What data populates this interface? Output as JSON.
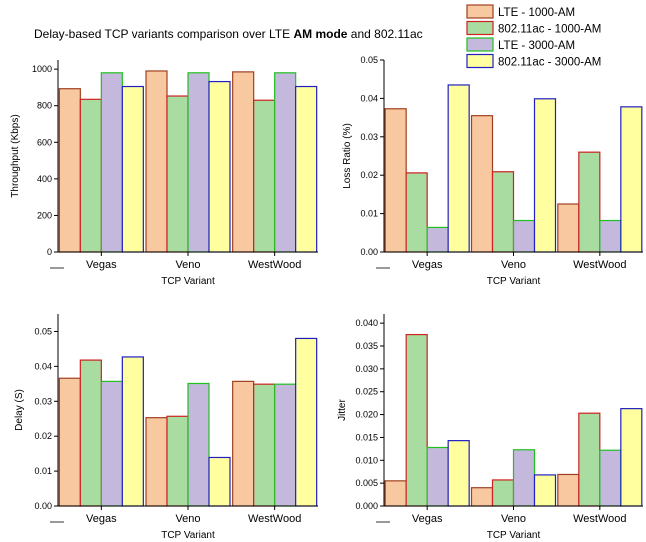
{
  "figure": {
    "title_prefix": "Delay-based TCP variants comparison over LTE ",
    "title_bold": "AM mode",
    "title_suffix": " and 802.11ac"
  },
  "legend": {
    "placement": "top-right",
    "entries": [
      {
        "label": "LTE - 1000-AM",
        "fill": "#f8c8a0",
        "stroke": "#a04020"
      },
      {
        "label": "802.11ac - 1000-AM",
        "fill": "#a8dca0",
        "stroke": "#d02020"
      },
      {
        "label": "LTE - 3000-AM",
        "fill": "#c4b8dc",
        "stroke": "#20c020"
      },
      {
        "label": "802.11ac - 3000-AM",
        "fill": "#ffffa0",
        "stroke": "#2020c0"
      }
    ]
  },
  "chart_data": [
    {
      "type": "bar",
      "categories": [
        "Vegas",
        "Veno",
        "WestWood"
      ],
      "xlabel": "TCP Variant",
      "ylabel": "Throughput (Kbps)",
      "ylim": [
        0,
        1050
      ],
      "yticks": [
        0,
        200,
        400,
        600,
        800,
        1000
      ],
      "ytick_labels": [
        "0",
        "200",
        "400",
        "600",
        "800",
        "1000"
      ],
      "series": [
        {
          "values": [
            893,
            990,
            985
          ]
        },
        {
          "values": [
            835,
            853,
            830
          ]
        },
        {
          "values": [
            980,
            980,
            980
          ]
        },
        {
          "values": [
            905,
            932,
            905
          ]
        }
      ]
    },
    {
      "type": "bar",
      "categories": [
        "Vegas",
        "Veno",
        "WestWood"
      ],
      "xlabel": "TCP Variant",
      "ylabel": "Loss Ratio (%)",
      "ylim": [
        0,
        0.05
      ],
      "yticks": [
        0,
        0.01,
        0.02,
        0.03,
        0.04,
        0.05
      ],
      "ytick_labels": [
        "0.00",
        "0.01",
        "0.02",
        "0.03",
        "0.04",
        "0.05"
      ],
      "series": [
        {
          "values": [
            0.0373,
            0.0355,
            0.0125
          ]
        },
        {
          "values": [
            0.0206,
            0.0209,
            0.026
          ]
        },
        {
          "values": [
            0.0064,
            0.0082,
            0.0082
          ]
        },
        {
          "values": [
            0.0435,
            0.0399,
            0.0378
          ]
        }
      ]
    },
    {
      "type": "bar",
      "categories": [
        "Vegas",
        "Veno",
        "WestWood"
      ],
      "xlabel": "TCP Variant",
      "ylabel": "Delay (S)",
      "ylim": [
        0,
        0.055
      ],
      "yticks": [
        0,
        0.01,
        0.02,
        0.03,
        0.04,
        0.05
      ],
      "ytick_labels": [
        "0.00",
        "0.01",
        "0.02",
        "0.03",
        "0.04",
        "0.05"
      ],
      "series": [
        {
          "values": [
            0.0366,
            0.0253,
            0.0357
          ]
        },
        {
          "values": [
            0.0418,
            0.0257,
            0.0349
          ]
        },
        {
          "values": [
            0.0357,
            0.0351,
            0.0349
          ]
        },
        {
          "values": [
            0.0427,
            0.0139,
            0.048
          ]
        }
      ]
    },
    {
      "type": "bar",
      "categories": [
        "Vegas",
        "Veno",
        "WestWood"
      ],
      "xlabel": "TCP Variant",
      "ylabel": "Jitter",
      "ylim": [
        0,
        0.042
      ],
      "yticks": [
        0,
        0.005,
        0.01,
        0.015,
        0.02,
        0.025,
        0.03,
        0.035,
        0.04
      ],
      "ytick_labels": [
        "0.000",
        "0.005",
        "0.010",
        "0.015",
        "0.020",
        "0.025",
        "0.030",
        "0.035",
        "0.040"
      ],
      "series": [
        {
          "values": [
            0.0055,
            0.004,
            0.0069
          ]
        },
        {
          "values": [
            0.0375,
            0.0057,
            0.0203
          ]
        },
        {
          "values": [
            0.0128,
            0.0123,
            0.0122
          ]
        },
        {
          "values": [
            0.0143,
            0.0068,
            0.0213
          ]
        }
      ]
    }
  ]
}
